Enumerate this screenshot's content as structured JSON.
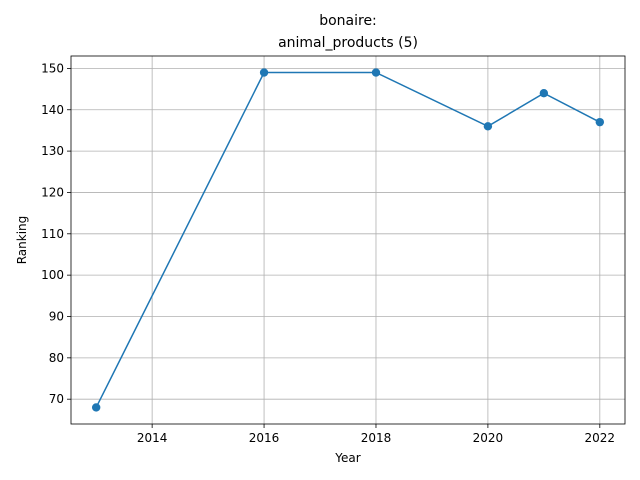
{
  "chart_data": {
    "type": "line",
    "title_line1": "bonaire:",
    "title_line2": "animal_products (5)",
    "xlabel": "Year",
    "ylabel": "Ranking",
    "x": [
      2013,
      2016,
      2018,
      2020,
      2021,
      2022
    ],
    "y": [
      68,
      149,
      149,
      136,
      144,
      137
    ],
    "xlim": [
      2012.55,
      2022.45
    ],
    "ylim": [
      64,
      153
    ],
    "xticks": [
      2014,
      2016,
      2018,
      2020,
      2022
    ],
    "yticks": [
      70,
      80,
      90,
      100,
      110,
      120,
      130,
      140,
      150
    ],
    "grid": true,
    "color": "#1f77b4"
  }
}
